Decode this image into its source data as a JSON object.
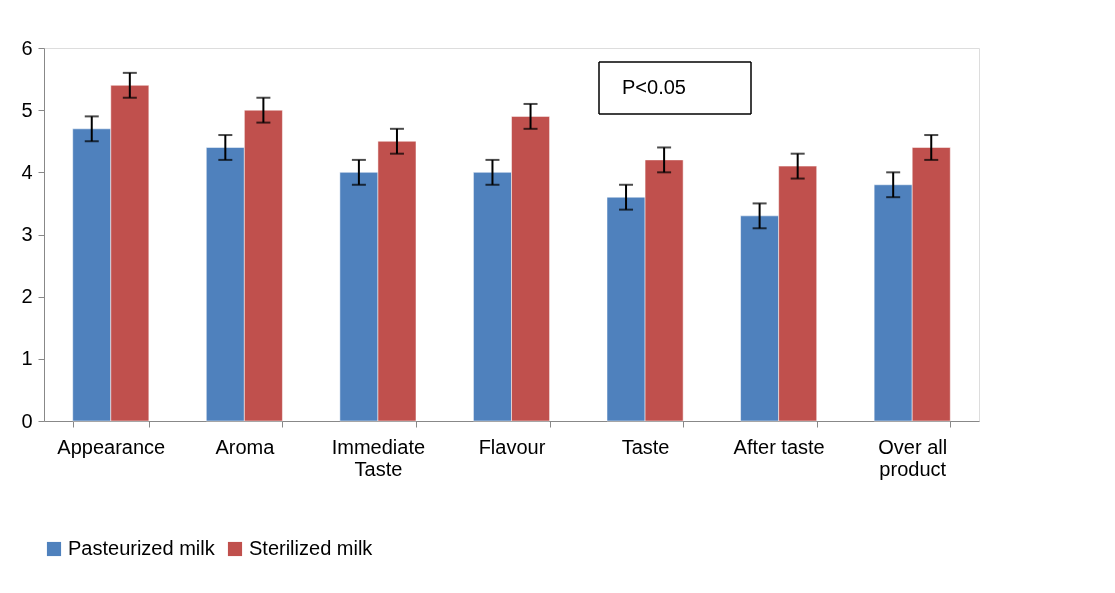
{
  "chart_data": {
    "type": "bar",
    "categories": [
      "Appearance",
      "Aroma",
      "Immediate Taste",
      "Flavour",
      "Taste",
      "After taste",
      "Over all product"
    ],
    "series": [
      {
        "name": "Pasteurized milk",
        "color": "#4f81bd",
        "values": [
          4.7,
          4.4,
          4.0,
          4.0,
          3.6,
          3.3,
          3.8
        ],
        "errors": [
          0.2,
          0.2,
          0.2,
          0.2,
          0.2,
          0.2,
          0.2
        ]
      },
      {
        "name": "Sterilized milk",
        "color": "#c0504d",
        "values": [
          5.4,
          5.0,
          4.5,
          4.9,
          4.2,
          4.1,
          4.4
        ],
        "errors": [
          0.2,
          0.2,
          0.2,
          0.2,
          0.2,
          0.2,
          0.2
        ]
      }
    ],
    "ylim": [
      0,
      6
    ],
    "yticks": [
      0,
      1,
      2,
      3,
      4,
      5,
      6
    ],
    "grid": false,
    "legend": "bottom",
    "annotations": [
      "P<0.05"
    ]
  }
}
